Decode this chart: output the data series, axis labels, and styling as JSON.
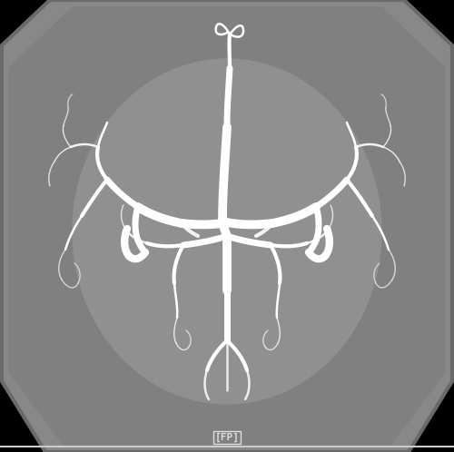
{
  "fig_width": 5.0,
  "fig_height": 4.98,
  "dpi": 100,
  "bg_color": "#000000",
  "brain_color": "#888888",
  "brain_edge_color": "#6a6a6a",
  "label_text": "[FP]",
  "label_color": "#dddddd",
  "label_fontsize": 8,
  "vessel_color": "#ffffff",
  "lw_thick": 7.0,
  "lw_main": 5.0,
  "lw_mid": 3.0,
  "lw_thin": 1.8,
  "lw_tiny": 1.0
}
